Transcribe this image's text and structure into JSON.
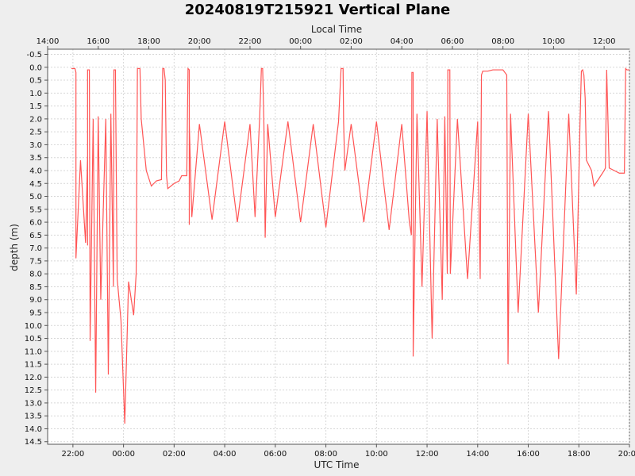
{
  "chart_data": {
    "type": "area",
    "title": "20240819T215921 Vertical Plane",
    "top_axis_label": "Local Time",
    "xlabel": "UTC Time",
    "ylabel": "depth (m)",
    "grid": true,
    "legend": "none",
    "series_color": "#ff5555",
    "background": "#eeeeee",
    "plot_background": "#ffffff",
    "y_reversed": true,
    "ylim": [
      -0.7,
      14.6
    ],
    "xlim": [
      -1.0,
      22.0
    ],
    "x_units": "hours since 2024-08-19 22:00 UTC",
    "y_ticks": [
      -0.5,
      0.0,
      0.5,
      1.0,
      1.5,
      2.0,
      2.5,
      3.0,
      3.5,
      4.0,
      4.5,
      5.0,
      5.5,
      6.0,
      6.5,
      7.0,
      7.5,
      8.0,
      8.5,
      9.0,
      9.5,
      10.0,
      10.5,
      11.0,
      11.5,
      12.0,
      12.5,
      13.0,
      13.5,
      14.0,
      14.5
    ],
    "y_tick_labels": [
      "-0.5",
      "0.0",
      "0.5",
      "1.0",
      "1.5",
      "2.0",
      "2.5",
      "3.0",
      "3.5",
      "4.0",
      "4.5",
      "5.0",
      "5.5",
      "6.0",
      "6.5",
      "7.0",
      "7.5",
      "8.0",
      "8.5",
      "9.0",
      "9.5",
      "10.0",
      "10.5",
      "11.0",
      "11.5",
      "12.0",
      "12.5",
      "13.0",
      "13.5",
      "14.0",
      "14.5"
    ],
    "bottom_ticks": [
      0,
      2,
      4,
      6,
      8,
      10,
      12,
      14,
      16,
      18,
      20,
      22
    ],
    "bottom_tick_labels": [
      "22:00",
      "00:00",
      "02:00",
      "04:00",
      "06:00",
      "08:00",
      "10:00",
      "12:00",
      "14:00",
      "16:00",
      "18:00",
      "20:00"
    ],
    "top_ticks": [
      -1.0,
      1.0,
      3.0,
      5.0,
      7.0,
      9.0,
      11.0,
      13.0,
      15.0,
      17.0,
      19.0,
      21.0
    ],
    "top_tick_labels": [
      "14:00",
      "16:00",
      "18:00",
      "20:00",
      "22:00",
      "00:00",
      "02:00",
      "04:00",
      "06:00",
      "08:00",
      "10:00",
      "12:00"
    ],
    "series": [
      {
        "name": "depth",
        "values": [
          [
            -0.06,
            0.05
          ],
          [
            0.08,
            0.05
          ],
          [
            0.12,
            0.2
          ],
          [
            0.12,
            2.0
          ],
          [
            0.12,
            7.4
          ],
          [
            0.3,
            3.6
          ],
          [
            0.5,
            6.8
          ],
          [
            0.58,
            3.4
          ],
          [
            0.58,
            6.9
          ],
          [
            0.58,
            0.1
          ],
          [
            0.65,
            0.1
          ],
          [
            0.68,
            10.6
          ],
          [
            0.8,
            2.0
          ],
          [
            0.9,
            12.6
          ],
          [
            1.0,
            1.9
          ],
          [
            1.1,
            9.0
          ],
          [
            1.3,
            2.0
          ],
          [
            1.4,
            11.9
          ],
          [
            1.5,
            1.8
          ],
          [
            1.6,
            8.5
          ],
          [
            1.62,
            0.1
          ],
          [
            1.68,
            0.1
          ],
          [
            1.75,
            8.2
          ],
          [
            1.9,
            9.8
          ],
          [
            2.05,
            13.8
          ],
          [
            2.2,
            8.3
          ],
          [
            2.4,
            9.6
          ],
          [
            2.5,
            8.0
          ],
          [
            2.55,
            0.05
          ],
          [
            2.65,
            0.05
          ],
          [
            2.7,
            2.0
          ],
          [
            2.8,
            3.0
          ],
          [
            2.9,
            4.0
          ],
          [
            3.0,
            4.3
          ],
          [
            3.1,
            4.6
          ],
          [
            3.3,
            4.4
          ],
          [
            3.5,
            4.35
          ],
          [
            3.55,
            0.05
          ],
          [
            3.6,
            0.05
          ],
          [
            3.65,
            0.5
          ],
          [
            3.7,
            4.2
          ],
          [
            3.75,
            4.7
          ],
          [
            4.0,
            4.5
          ],
          [
            4.2,
            4.4
          ],
          [
            4.3,
            4.2
          ],
          [
            4.5,
            4.2
          ],
          [
            4.55,
            0.05
          ],
          [
            4.6,
            0.1
          ],
          [
            4.6,
            6.1
          ],
          [
            4.6,
            2.2
          ],
          [
            4.7,
            5.8
          ],
          [
            5.0,
            2.2
          ],
          [
            5.5,
            5.9
          ],
          [
            6.0,
            2.1
          ],
          [
            6.5,
            6.0
          ],
          [
            7.0,
            2.2
          ],
          [
            7.2,
            5.8
          ],
          [
            7.38,
            2.0
          ],
          [
            7.45,
            0.05
          ],
          [
            7.5,
            0.05
          ],
          [
            7.55,
            2.2
          ],
          [
            7.6,
            6.6
          ],
          [
            7.7,
            2.2
          ],
          [
            8.0,
            5.8
          ],
          [
            8.5,
            2.1
          ],
          [
            9.0,
            6.0
          ],
          [
            9.5,
            2.2
          ],
          [
            10.0,
            6.2
          ],
          [
            10.5,
            2.1
          ],
          [
            10.6,
            0.05
          ],
          [
            10.68,
            0.05
          ],
          [
            10.7,
            2.1
          ],
          [
            10.75,
            4.0
          ],
          [
            11.0,
            2.2
          ],
          [
            11.5,
            6.0
          ],
          [
            12.0,
            2.1
          ],
          [
            12.5,
            6.3
          ],
          [
            13.0,
            2.2
          ],
          [
            13.3,
            6.0
          ],
          [
            13.38,
            6.5
          ],
          [
            13.4,
            0.2
          ],
          [
            13.45,
            0.2
          ],
          [
            13.45,
            11.2
          ],
          [
            13.6,
            1.8
          ],
          [
            13.8,
            8.5
          ],
          [
            14.0,
            1.7
          ],
          [
            14.2,
            10.5
          ],
          [
            14.4,
            2.0
          ],
          [
            14.6,
            9.0
          ],
          [
            14.7,
            1.9
          ],
          [
            14.8,
            8.0
          ],
          [
            14.82,
            0.1
          ],
          [
            14.9,
            0.1
          ],
          [
            14.92,
            8.0
          ],
          [
            15.2,
            2.0
          ],
          [
            15.6,
            8.2
          ],
          [
            16.0,
            2.1
          ],
          [
            16.1,
            8.2
          ],
          [
            16.15,
            0.3
          ],
          [
            16.2,
            0.15
          ],
          [
            16.4,
            0.15
          ],
          [
            16.6,
            0.1
          ],
          [
            16.8,
            0.1
          ],
          [
            17.0,
            0.1
          ],
          [
            17.15,
            0.3
          ],
          [
            17.2,
            11.5
          ],
          [
            17.3,
            1.8
          ],
          [
            17.6,
            9.5
          ],
          [
            18.0,
            1.8
          ],
          [
            18.4,
            9.5
          ],
          [
            18.8,
            1.7
          ],
          [
            19.2,
            11.3
          ],
          [
            19.6,
            1.8
          ],
          [
            19.9,
            8.8
          ],
          [
            20.05,
            2.0
          ],
          [
            20.1,
            0.15
          ],
          [
            20.15,
            0.1
          ],
          [
            20.2,
            0.3
          ],
          [
            20.25,
            1.2
          ],
          [
            20.3,
            3.6
          ],
          [
            20.5,
            4.0
          ],
          [
            20.6,
            4.6
          ],
          [
            20.8,
            4.3
          ],
          [
            21.0,
            4.0
          ],
          [
            21.05,
            3.9
          ],
          [
            21.1,
            0.1
          ],
          [
            21.15,
            2.0
          ],
          [
            21.2,
            3.9
          ],
          [
            21.4,
            4.0
          ],
          [
            21.6,
            4.1
          ],
          [
            21.8,
            4.1
          ],
          [
            21.85,
            0.05
          ],
          [
            21.9,
            0.1
          ],
          [
            22.0,
            0.1
          ]
        ]
      }
    ]
  }
}
